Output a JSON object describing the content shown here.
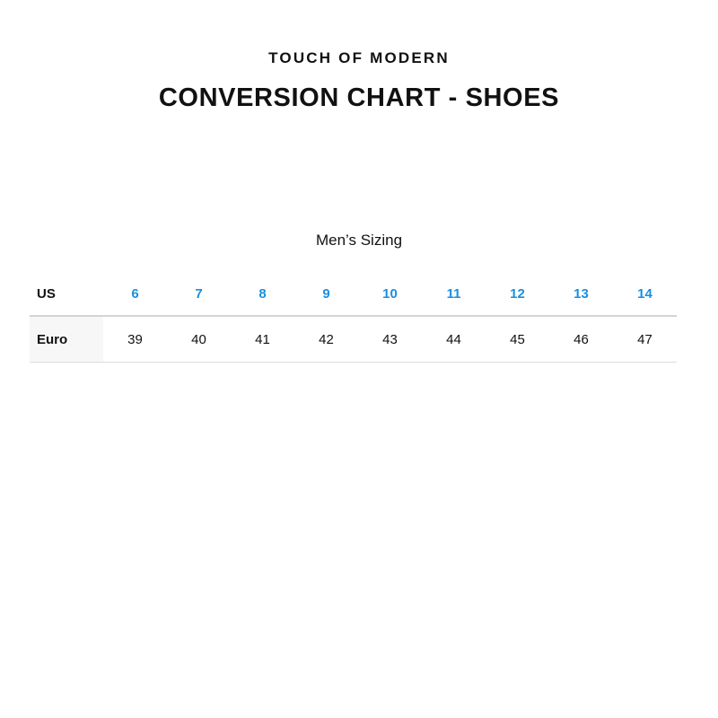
{
  "brand": "TOUCH OF MODERN",
  "title": "CONVERSION CHART - SHOES",
  "subtitle": "Men’s Sizing",
  "accent_color": "#1a8fe0",
  "table": {
    "rows": [
      {
        "label": "US",
        "values": [
          "6",
          "7",
          "8",
          "9",
          "10",
          "11",
          "12",
          "13",
          "14"
        ]
      },
      {
        "label": "Euro",
        "values": [
          "39",
          "40",
          "41",
          "42",
          "43",
          "44",
          "45",
          "46",
          "47"
        ]
      }
    ]
  }
}
